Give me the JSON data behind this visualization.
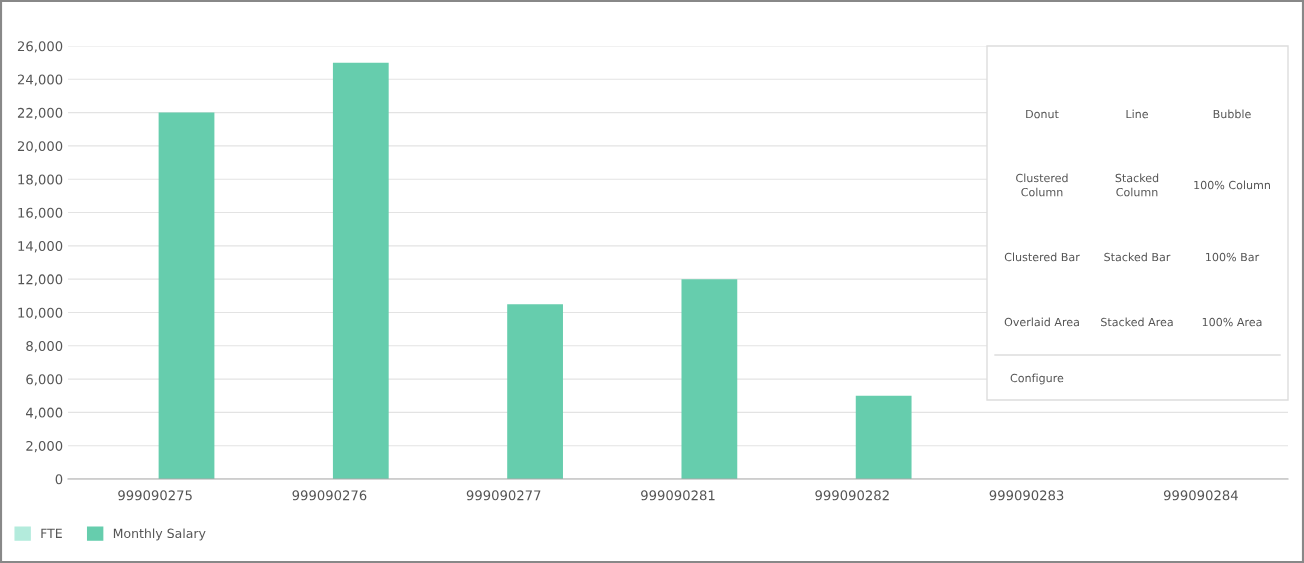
{
  "chart_data": {
    "type": "bar",
    "categories": [
      "999090275",
      "999090276",
      "999090277",
      "999090281",
      "999090282",
      "999090283",
      "999090284"
    ],
    "series": [
      {
        "name": "FTE",
        "color": "#b3ebdc",
        "values": [
          0,
          0,
          0,
          0,
          0,
          0,
          0
        ]
      },
      {
        "name": "Monthly Salary",
        "color": "#66cdad",
        "values": [
          22000,
          25000,
          10500,
          12000,
          5000,
          null,
          null
        ]
      }
    ],
    "ylim": [
      0,
      26000
    ],
    "yticks": [
      0,
      {
        "value": 2000,
        "label": "2,000"
      },
      {
        "value": 4000,
        "label": "4,000"
      },
      {
        "value": 6000,
        "label": "6,000"
      },
      {
        "value": 8000,
        "label": "8,000"
      },
      {
        "value": 10000,
        "label": "10,000"
      },
      {
        "value": 12000,
        "label": "12,000"
      },
      {
        "value": 14000,
        "label": "14,000"
      },
      {
        "value": 16000,
        "label": "16,000"
      },
      {
        "value": 18000,
        "label": "18,000"
      },
      {
        "value": 20000,
        "label": "20,000"
      },
      {
        "value": 22000,
        "label": "22,000"
      },
      {
        "value": 24000,
        "label": "24,000"
      },
      {
        "value": 26000,
        "label": "26,000"
      }
    ],
    "grid": "y",
    "legend": "bottom left",
    "annotations": [
      "Donut",
      "Line",
      "Bubble",
      "Clustered\nColumn",
      "Stacked\nColumn",
      "100% Column",
      "Clustered Bar",
      "Stacked Bar",
      "100% Bar",
      "Overlaid Area",
      "Stacked Area",
      "100% Area",
      "Configure"
    ]
  }
}
